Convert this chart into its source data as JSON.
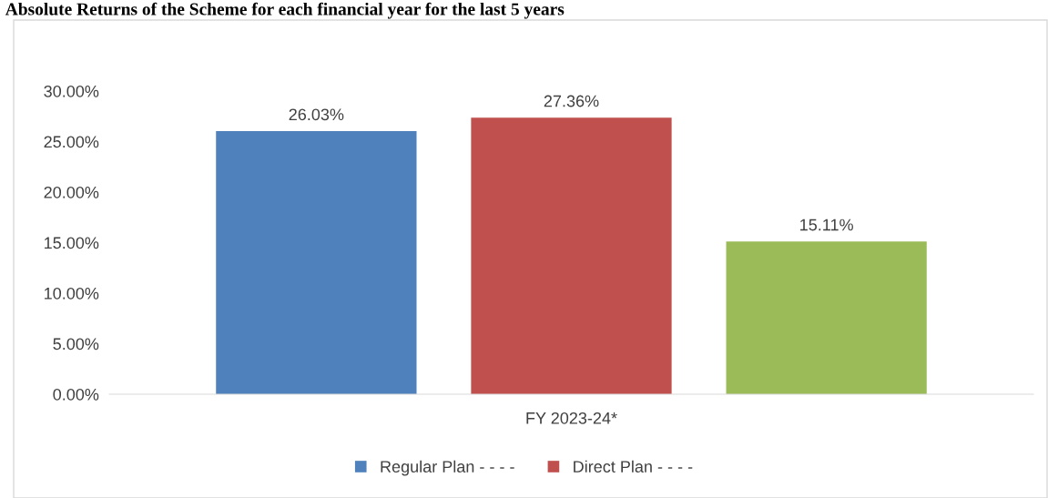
{
  "chart_data": {
    "type": "bar",
    "categories": [
      "FY 2023-24*"
    ],
    "series": [
      {
        "name": "Regular Plan - - - -",
        "color": "#4f81bd",
        "values": [
          26.03
        ],
        "value_labels": [
          "26.03%"
        ]
      },
      {
        "name": "Direct Plan - - - -",
        "color": "#c0504d",
        "values": [
          27.36
        ],
        "value_labels": [
          "27.36%"
        ]
      },
      {
        "color": "#9bbb59",
        "values": [
          15.11
        ],
        "value_labels": [
          "15.11%"
        ]
      }
    ],
    "ylim": [
      0,
      30
    ],
    "yticks": [
      {
        "value": 0,
        "label": "0.00%"
      },
      {
        "value": 5,
        "label": "5.00%"
      },
      {
        "value": 10,
        "label": "10.00%"
      },
      {
        "value": 15,
        "label": "15.00%"
      },
      {
        "value": 20,
        "label": "20.00%"
      },
      {
        "value": 25,
        "label": "25.00%"
      },
      {
        "value": 30,
        "label": "30.00%"
      }
    ],
    "grid": false,
    "legend": "bottom",
    "annotations": [
      "Absolute Returns of the Scheme for each financial year for the last 5 years"
    ]
  }
}
